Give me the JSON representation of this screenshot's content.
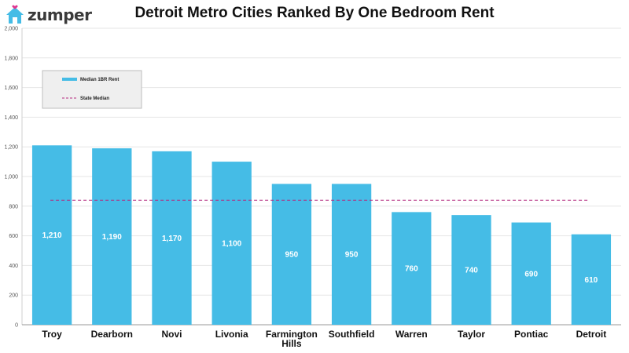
{
  "brand": {
    "name": "zumper",
    "icon": "house-heart-icon"
  },
  "colors": {
    "bar": "#45bce6",
    "reference": "#b4287f",
    "brand": "#45bce6",
    "heart": "#e0358f"
  },
  "chart_data": {
    "type": "bar",
    "title": "Detroit Metro Cities Ranked By One Bedroom Rent",
    "xlabel": "",
    "ylabel": "",
    "ylim": [
      0,
      2000
    ],
    "yticks": [
      0,
      200,
      400,
      600,
      800,
      1000,
      1200,
      1400,
      1600,
      1800,
      2000
    ],
    "ytick_labels": [
      "0",
      "200",
      "400",
      "600",
      "800",
      "1,000",
      "1,200",
      "1,400",
      "1,600",
      "1,800",
      "2,000"
    ],
    "grid": true,
    "legend_position": "top-left",
    "categories": [
      "Troy",
      "Dearborn",
      "Novi",
      "Livonia",
      "Farmington Hills",
      "Southfield",
      "Warren",
      "Taylor",
      "Pontiac",
      "Detroit"
    ],
    "series": [
      {
        "name": "Median 1BR Rent",
        "values": [
          1210,
          1190,
          1170,
          1100,
          950,
          950,
          760,
          740,
          690,
          610
        ],
        "labels": [
          "1,210",
          "1,190",
          "1,170",
          "1,100",
          "950",
          "950",
          "760",
          "740",
          "690",
          "610"
        ]
      }
    ],
    "reference_line": {
      "name": "State Median",
      "value": 840,
      "style": "dashed"
    }
  }
}
